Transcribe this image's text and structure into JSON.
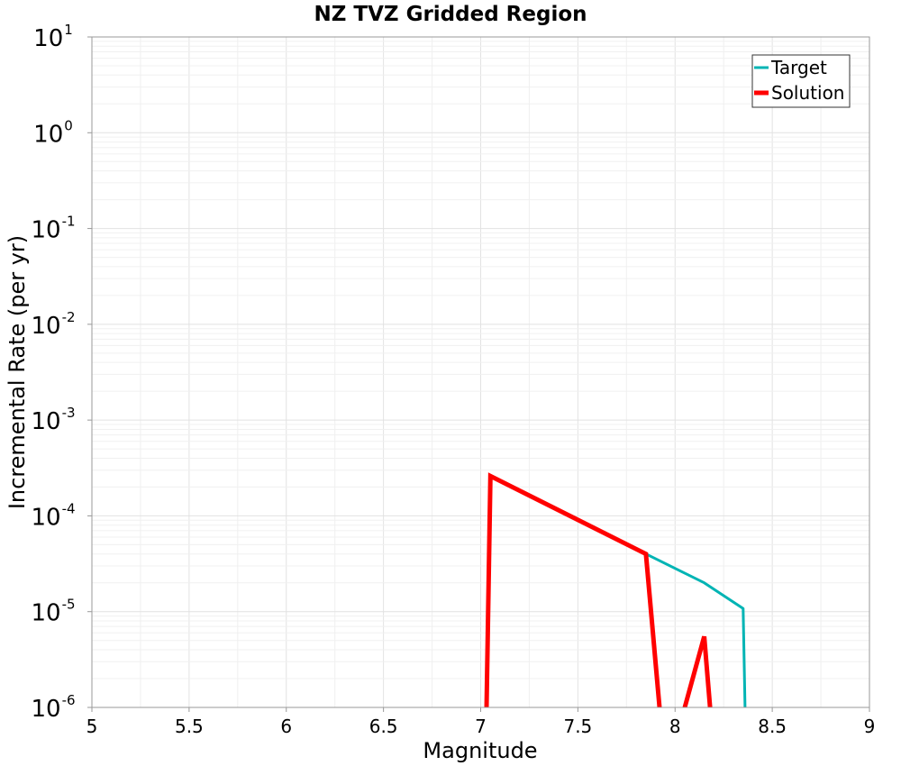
{
  "chart_data": {
    "type": "line",
    "title": "NZ TVZ Gridded Region",
    "xlabel": "Magnitude",
    "ylabel": "Incremental Rate (per yr)",
    "xlim": [
      5,
      9
    ],
    "ylim": [
      1e-06,
      10
    ],
    "yscale": "log",
    "x_ticks": [
      "5",
      "5.5",
      "6",
      "6.5",
      "7",
      "7.5",
      "8",
      "8.5",
      "9"
    ],
    "x_tick_values": [
      5,
      5.5,
      6,
      6.5,
      7,
      7.5,
      8,
      8.5,
      9
    ],
    "y_tick_exponents": [
      -6,
      -5,
      -4,
      -3,
      -2,
      -1,
      0,
      1
    ],
    "y_tick_base": "10",
    "grid": true,
    "legend_position": "top-right",
    "series": [
      {
        "name": "Target",
        "color": "#00b4b4",
        "x": [
          7.05,
          7.85,
          8.15,
          8.35,
          8.36
        ],
        "y": [
          0.00026,
          4e-05,
          2e-05,
          1.08e-05,
          1e-06
        ]
      },
      {
        "name": "Solution",
        "color": "#ff0000",
        "segments": [
          {
            "x": [
              7.03,
              7.05,
              7.85,
              7.92
            ],
            "y": [
              1e-06,
              0.00026,
              4e-05,
              1e-06
            ]
          },
          {
            "x": [
              8.05,
              8.15,
              8.18
            ],
            "y": [
              1e-06,
              5.5e-06,
              1e-06
            ]
          }
        ]
      }
    ]
  }
}
